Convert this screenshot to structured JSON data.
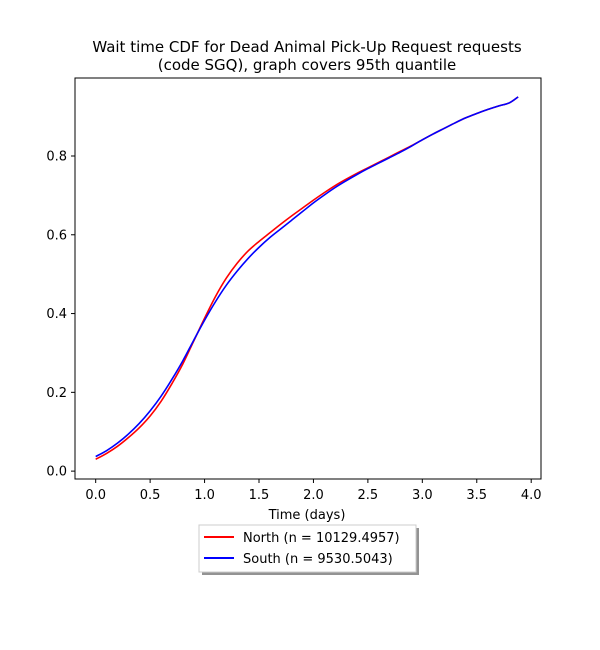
{
  "chart_data": {
    "type": "line",
    "title_line1": "Wait time CDF for Dead Animal Pick-Up Request  requests",
    "title_line2": "(code SGQ), graph covers 95th quantile",
    "xlabel": "Time (days)",
    "ylabel": "",
    "xlim": [
      -0.19,
      4.09
    ],
    "ylim": [
      -0.02,
      0.998
    ],
    "x_ticks": [
      0.0,
      0.5,
      1.0,
      1.5,
      2.0,
      2.5,
      3.0,
      3.5,
      4.0
    ],
    "x_tick_labels": [
      "0.0",
      "0.5",
      "1.0",
      "1.5",
      "2.0",
      "2.5",
      "3.0",
      "3.5",
      "4.0"
    ],
    "y_ticks": [
      0.0,
      0.2,
      0.4,
      0.6,
      0.8
    ],
    "y_tick_labels": [
      "0.0",
      "0.2",
      "0.4",
      "0.6",
      "0.8"
    ],
    "grid": false,
    "legend_position": "below plot, centered",
    "series": [
      {
        "name": "North (n = 10129.4957)",
        "color": "#ff0000",
        "x": [
          0.0,
          0.1,
          0.2,
          0.3,
          0.4,
          0.5,
          0.6,
          0.7,
          0.8,
          0.9,
          1.0,
          1.1,
          1.2,
          1.3,
          1.4,
          1.5,
          1.6,
          1.7,
          1.8,
          1.9,
          2.0,
          2.1,
          2.2,
          2.3,
          2.4,
          2.5,
          2.6,
          2.7,
          2.8,
          2.9,
          3.0,
          3.1,
          3.2,
          3.3,
          3.4,
          3.5,
          3.6,
          3.7,
          3.8,
          3.88
        ],
        "y": [
          0.03,
          0.045,
          0.063,
          0.085,
          0.11,
          0.14,
          0.177,
          0.222,
          0.272,
          0.33,
          0.388,
          0.443,
          0.49,
          0.528,
          0.559,
          0.583,
          0.605,
          0.627,
          0.648,
          0.668,
          0.688,
          0.707,
          0.725,
          0.741,
          0.756,
          0.77,
          0.784,
          0.798,
          0.812,
          0.826,
          0.841,
          0.856,
          0.87,
          0.884,
          0.897,
          0.908,
          0.918,
          0.927,
          0.935,
          0.95
        ]
      },
      {
        "name": "South (n = 9530.5043)",
        "color": "#0000ff",
        "x": [
          0.0,
          0.1,
          0.2,
          0.3,
          0.4,
          0.5,
          0.6,
          0.7,
          0.8,
          0.9,
          1.0,
          1.1,
          1.2,
          1.3,
          1.4,
          1.5,
          1.6,
          1.7,
          1.8,
          1.9,
          2.0,
          2.1,
          2.2,
          2.3,
          2.4,
          2.5,
          2.6,
          2.7,
          2.8,
          2.9,
          3.0,
          3.1,
          3.2,
          3.3,
          3.4,
          3.5,
          3.6,
          3.7,
          3.8,
          3.88
        ],
        "y": [
          0.037,
          0.052,
          0.071,
          0.094,
          0.121,
          0.153,
          0.19,
          0.233,
          0.28,
          0.332,
          0.383,
          0.43,
          0.472,
          0.508,
          0.54,
          0.568,
          0.593,
          0.615,
          0.637,
          0.659,
          0.681,
          0.701,
          0.72,
          0.737,
          0.753,
          0.768,
          0.782,
          0.796,
          0.81,
          0.825,
          0.841,
          0.856,
          0.87,
          0.884,
          0.897,
          0.908,
          0.918,
          0.927,
          0.935,
          0.95
        ]
      }
    ]
  }
}
